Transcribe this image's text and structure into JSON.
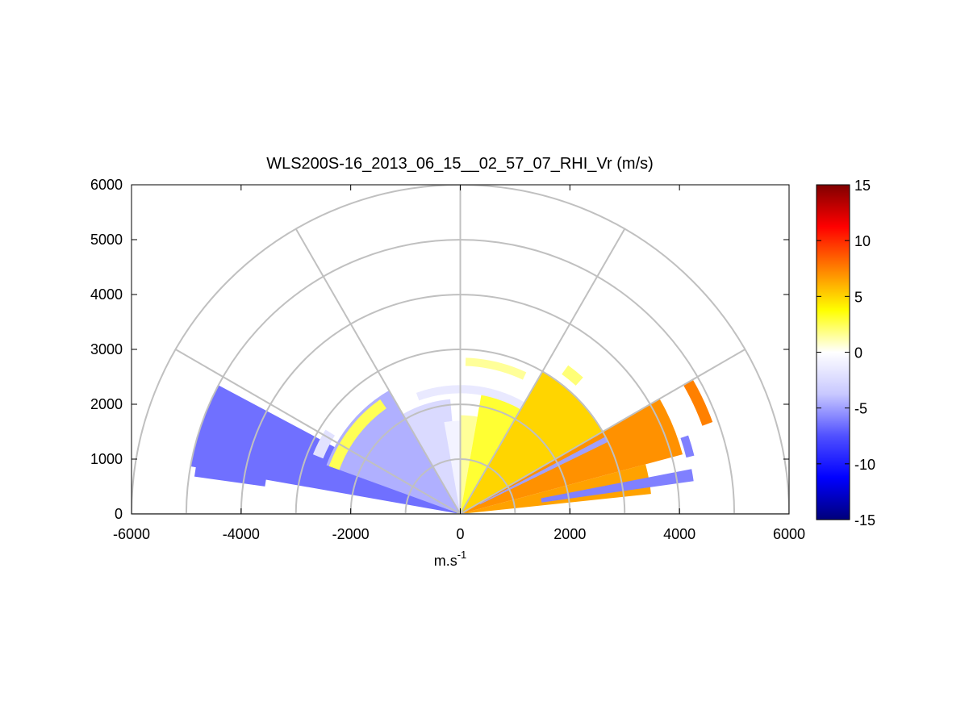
{
  "chart_data": {
    "type": "heatmap",
    "subtype": "polar-rhi-sector",
    "title": "WLS200S-16_2013_06_15__02_57_07_RHI_Vr (m/s)",
    "xlabel": "m.s",
    "xlabel_superscript": "-1",
    "ylabel": "",
    "xlim": [
      -6000,
      6000
    ],
    "ylim": [
      0,
      6000
    ],
    "xticks": [
      -6000,
      -4000,
      -2000,
      0,
      2000,
      4000,
      6000
    ],
    "yticks": [
      0,
      1000,
      2000,
      3000,
      4000,
      5000,
      6000
    ],
    "polar_grid": {
      "range_rings": [
        1000,
        2000,
        3000,
        4000,
        5000,
        6000
      ],
      "spokes_deg": [
        0,
        30,
        60,
        90,
        120,
        150,
        180
      ],
      "grid": true
    },
    "colorbar": {
      "label": "",
      "range": [
        -15,
        15
      ],
      "ticks": [
        -15,
        -10,
        -5,
        0,
        5,
        10,
        15
      ],
      "colormap": "blue-white-yellow-orange-red",
      "colors": [
        "#00007a",
        "#0000ff",
        "#5050ff",
        "#c8c8ff",
        "#ffffff",
        "#ffff00",
        "#ff8000",
        "#ff0000",
        "#800000"
      ]
    },
    "sectors": [
      {
        "az_deg": [
          152,
          170
        ],
        "range_m": [
          0,
          5000
        ],
        "vr": -6.5
      },
      {
        "az_deg": [
          165,
          172
        ],
        "range_m": [
          3600,
          4900
        ],
        "vr": -6.5
      },
      {
        "az_deg": [
          120,
          160
        ],
        "range_m": [
          0,
          2600
        ],
        "vr": -4.5
      },
      {
        "az_deg": [
          95,
          120
        ],
        "range_m": [
          0,
          2100
        ],
        "vr": -2.5
      },
      {
        "az_deg": [
          90,
          100
        ],
        "range_m": [
          0,
          1700
        ],
        "vr": -0.8
      },
      {
        "az_deg": [
          80,
          90
        ],
        "range_m": [
          0,
          1800
        ],
        "vr": 1.5
      },
      {
        "az_deg": [
          60,
          80
        ],
        "range_m": [
          0,
          2300
        ],
        "vr": 3.0
      },
      {
        "az_deg": [
          30,
          60
        ],
        "range_m": [
          0,
          3000
        ],
        "vr": 5.0
      },
      {
        "az_deg": [
          15,
          30
        ],
        "range_m": [
          0,
          4200
        ],
        "vr": 7.0
      },
      {
        "az_deg": [
          6,
          15
        ],
        "range_m": [
          0,
          3500
        ],
        "vr": 6.5
      },
      {
        "az_deg": [
          8,
          11
        ],
        "range_m": [
          1500,
          4300
        ],
        "vr": -6.0
      },
      {
        "az_deg": [
          26,
          28
        ],
        "range_m": [
          400,
          3000
        ],
        "vr": -5.0
      },
      {
        "az_deg": [
          14,
          19
        ],
        "range_m": [
          4250,
          4400
        ],
        "vr": -6.0
      },
      {
        "az_deg": [
          20,
          30
        ],
        "range_m": [
          4700,
          4900
        ],
        "vr": 7.5
      },
      {
        "az_deg": [
          125,
          160
        ],
        "range_m": [
          2350,
          2550
        ],
        "vr": 2.5
      },
      {
        "az_deg": [
          148,
          158
        ],
        "range_m": [
          2700,
          2900
        ],
        "vr": -2.0
      },
      {
        "az_deg": [
          60,
          110
        ],
        "range_m": [
          2200,
          2350
        ],
        "vr": -1.5
      },
      {
        "az_deg": [
          65,
          88
        ],
        "range_m": [
          2700,
          2850
        ],
        "vr": 1.5
      },
      {
        "az_deg": [
          48,
          54
        ],
        "range_m": [
          3150,
          3350
        ],
        "vr": 2.0
      }
    ]
  }
}
